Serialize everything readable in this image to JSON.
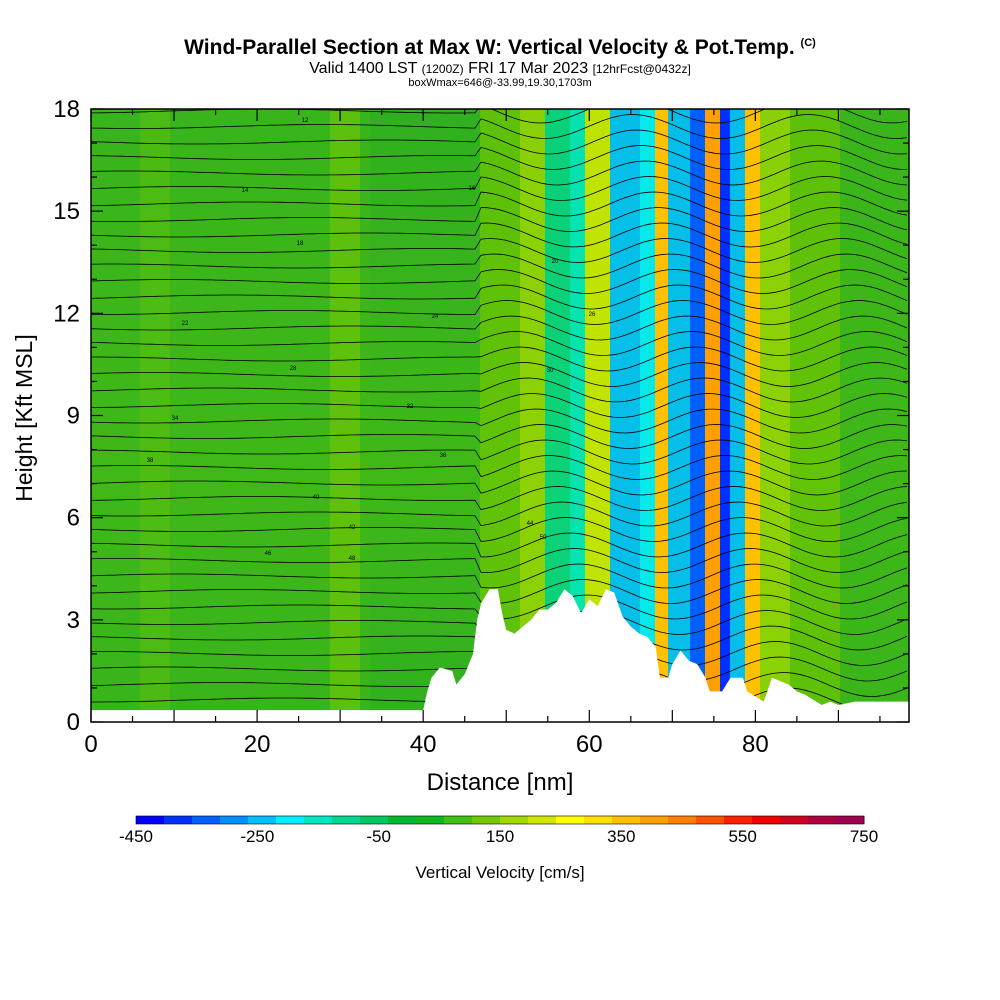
{
  "title": {
    "main": "Wind-Parallel Section at Max W: Vertical Velocity & Pot.Temp.",
    "copyright": "(C)",
    "valid_prefix": "Valid 1400 LST",
    "valid_utc": "(1200Z)",
    "valid_date": "FRI 17 Mar 2023",
    "forecast": "[12hrFcst@0432z]",
    "boxline": "boxWmax=646@-33.99,19.30,1703m"
  },
  "chart_data": {
    "type": "heatmap",
    "xlabel": "Distance [nm]",
    "ylabel": "Height [Kft MSL]",
    "xlim": [
      0,
      98.5
    ],
    "ylim": [
      0,
      18
    ],
    "xticks": [
      0,
      20,
      40,
      60,
      80
    ],
    "yticks": [
      0,
      3,
      6,
      9,
      12,
      15,
      18
    ],
    "colorbar": {
      "label": "Vertical Velocity [cm/s]",
      "min": -450,
      "max": 750,
      "step": 50,
      "tick_labels": [
        "-450",
        "-250",
        "-50",
        "150",
        "350",
        "550",
        "750"
      ],
      "colors": [
        "#0000ff",
        "#0030ff",
        "#0060ff",
        "#0090ff",
        "#00c0ff",
        "#00f0ff",
        "#00e8c0",
        "#00d890",
        "#00c860",
        "#00b830",
        "#10b820",
        "#40c010",
        "#70c800",
        "#a0d800",
        "#d0e800",
        "#ffff00",
        "#ffe000",
        "#ffc000",
        "#ffa000",
        "#ff8000",
        "#ff5000",
        "#ff2000",
        "#f00000",
        "#d00020",
        "#b00040",
        "#a00050"
      ]
    },
    "terrain": [
      [
        0,
        0.35
      ],
      [
        40,
        0.35
      ],
      [
        40.5,
        0.9
      ],
      [
        41,
        1.3
      ],
      [
        42,
        1.6
      ],
      [
        43.5,
        1.5
      ],
      [
        44,
        1.1
      ],
      [
        45,
        1.4
      ],
      [
        46,
        2
      ],
      [
        46.5,
        3
      ],
      [
        47,
        3.5
      ],
      [
        48,
        3.9
      ],
      [
        49,
        3.9
      ],
      [
        49.5,
        3.2
      ],
      [
        50,
        2.7
      ],
      [
        51,
        2.6
      ],
      [
        52,
        2.8
      ],
      [
        53,
        3
      ],
      [
        54,
        3.3
      ],
      [
        55,
        3.3
      ],
      [
        56,
        3.5
      ],
      [
        57,
        3.9
      ],
      [
        58,
        3.7
      ],
      [
        59,
        3.2
      ],
      [
        60,
        3.6
      ],
      [
        61,
        3.4
      ],
      [
        62,
        3.9
      ],
      [
        63,
        3.8
      ],
      [
        64,
        3.1
      ],
      [
        65,
        2.8
      ],
      [
        66,
        2.6
      ],
      [
        67,
        2.5
      ],
      [
        68,
        2.2
      ],
      [
        68.5,
        1.3
      ],
      [
        69.5,
        1.3
      ],
      [
        70,
        1.7
      ],
      [
        71,
        2.1
      ],
      [
        72,
        1.8
      ],
      [
        73,
        1.7
      ],
      [
        74,
        1.3
      ],
      [
        74.5,
        0.9
      ],
      [
        76,
        0.9
      ],
      [
        77,
        1.3
      ],
      [
        78.5,
        1.3
      ],
      [
        79,
        0.9
      ],
      [
        81,
        0.6
      ],
      [
        82,
        1.3
      ],
      [
        84,
        1.1
      ],
      [
        85,
        0.9
      ],
      [
        86,
        0.8
      ],
      [
        88,
        0.5
      ],
      [
        89,
        0.6
      ],
      [
        90,
        0.5
      ],
      [
        92,
        0.6
      ],
      [
        93,
        0.6
      ],
      [
        98.5,
        0.6
      ]
    ],
    "theta_labels": [
      "12",
      "14",
      "16",
      "18",
      "20",
      "22",
      "24",
      "26",
      "28",
      "30",
      "32",
      "34",
      "36",
      "38",
      "40",
      "42",
      "44",
      "46",
      "48",
      "50"
    ]
  }
}
